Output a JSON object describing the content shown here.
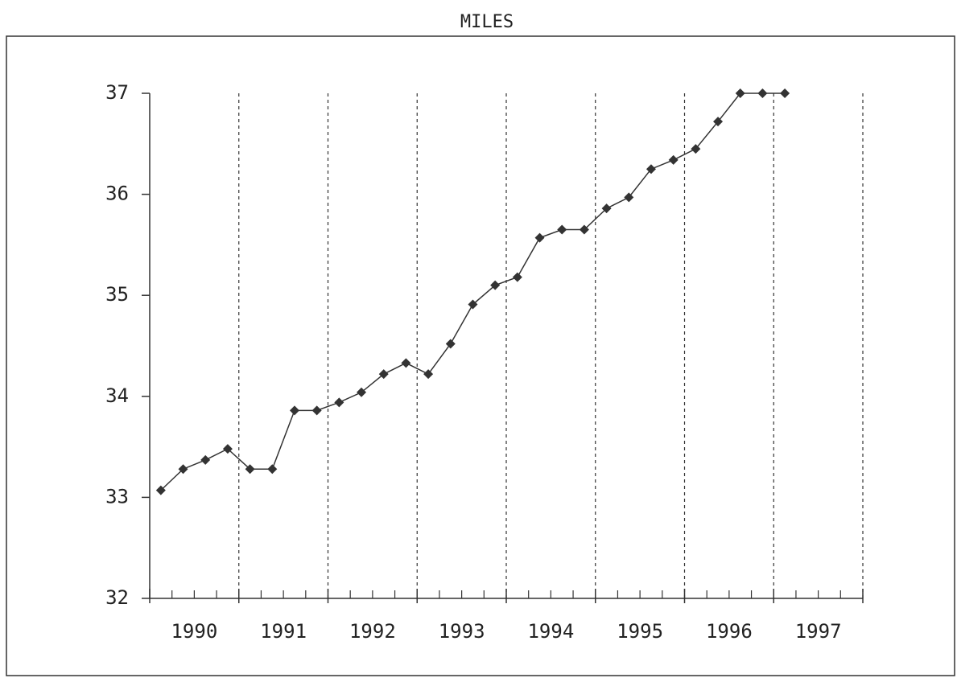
{
  "chart_data": {
    "type": "line",
    "title": "MILES",
    "categories": [
      "1990",
      "1991",
      "1992",
      "1993",
      "1994",
      "1995",
      "1996",
      "1997"
    ],
    "x": [
      1990.125,
      1990.375,
      1990.625,
      1990.875,
      1991.125,
      1991.375,
      1991.625,
      1991.875,
      1992.125,
      1992.375,
      1992.625,
      1992.875,
      1993.125,
      1993.375,
      1993.625,
      1993.875,
      1994.125,
      1994.375,
      1994.625,
      1994.875,
      1995.125,
      1995.375,
      1995.625,
      1995.875,
      1996.125,
      1996.375,
      1996.625,
      1996.875,
      1997.125
    ],
    "series": [
      {
        "name": "MILES",
        "color": "#333333",
        "values": [
          33.07,
          33.28,
          33.37,
          33.48,
          33.28,
          33.28,
          33.86,
          33.86,
          33.94,
          34.04,
          34.22,
          34.33,
          34.22,
          34.52,
          34.91,
          35.1,
          35.18,
          35.57,
          35.65,
          35.65,
          35.86,
          35.97,
          36.25,
          36.34,
          36.45,
          36.72,
          37.0,
          37.0,
          37.0
        ]
      }
    ],
    "xlim": [
      1990,
      1998
    ],
    "xticks": [
      1990,
      1991,
      1992,
      1993,
      1994,
      1995,
      1996,
      1997,
      1998
    ],
    "ylim": [
      32,
      37
    ],
    "yticks": [
      32,
      33,
      34,
      35,
      36,
      37
    ],
    "grid": true
  }
}
